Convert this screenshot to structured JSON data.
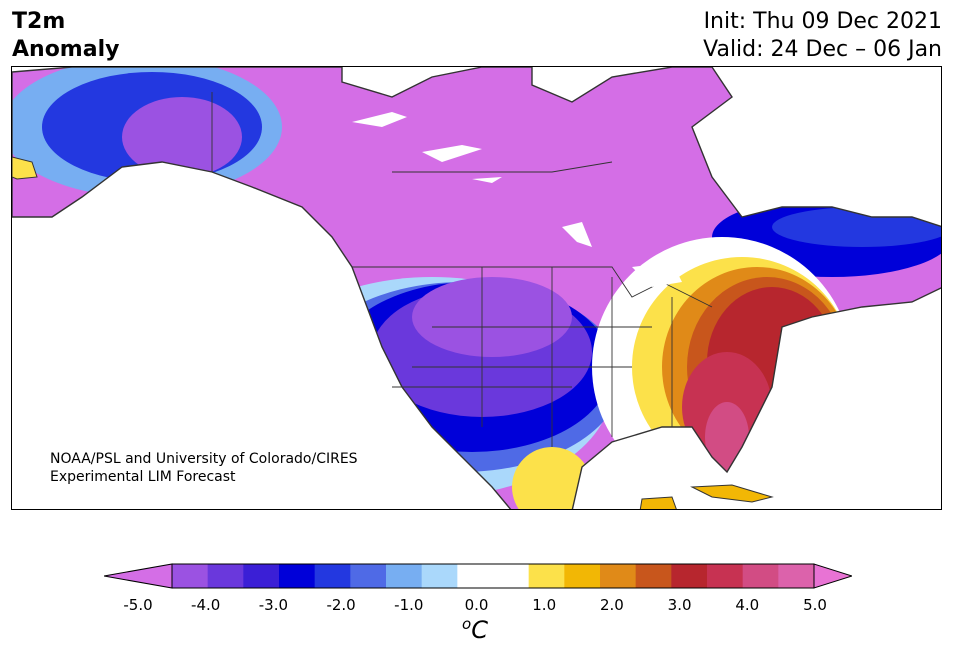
{
  "header": {
    "title_line1": "T2m",
    "title_line2": "Anomaly",
    "init": "Init: Thu 09 Dec 2021",
    "valid": "Valid: 24 Dec – 06 Jan"
  },
  "map": {
    "region": "North America",
    "variable": "2-meter temperature anomaly",
    "credit_line1": "NOAA/PSL and University of Colorado/CIRES",
    "credit_line2": "Experimental LIM Forecast",
    "colors": {
      "cold_extreme": "#d46ee6",
      "cold_strong": "#0000d9",
      "cold_moderate": "#4f6ae6",
      "cold_weak": "#aad8fb",
      "neutral": "#ffffff",
      "warm_weak": "#fce14a",
      "warm_moderate": "#e08a18",
      "warm_strong": "#b7262e",
      "warm_extreme": "#d24c84"
    }
  },
  "colorbar": {
    "unit_base": "C",
    "unit_sup": "o",
    "ticks": [
      "-5.0",
      "-4.0",
      "-3.0",
      "-2.0",
      "-1.0",
      "0.0",
      "1.0",
      "2.0",
      "3.0",
      "4.0",
      "5.0"
    ],
    "colors": [
      "#d46ee6",
      "#9b52e2",
      "#6a38dc",
      "#3b1fd6",
      "#0000d9",
      "#2338e0",
      "#4f6ae6",
      "#77aef2",
      "#aad8fb",
      "#ffffff",
      "#ffffff",
      "#fce14a",
      "#f2b705",
      "#e08a18",
      "#c8561c",
      "#b7262e",
      "#c73252",
      "#d24c84",
      "#dc62ab",
      "#e873d4"
    ]
  }
}
